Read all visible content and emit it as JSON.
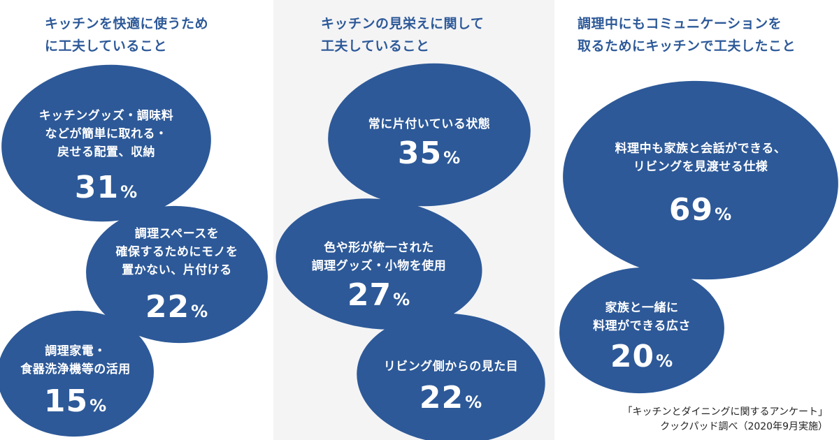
{
  "colors": {
    "bubble": "#2d5998",
    "heading": "#2d5998",
    "mid_panel": "#f4f4f5"
  },
  "columns": [
    {
      "title": "キッチンを快適に使うため\nに工夫していること"
    },
    {
      "title": "キッチンの見栄えに関して\n工夫していること"
    },
    {
      "title": "調理中にもコミュニケーションを\n取るためにキッチンで工夫したこと"
    }
  ],
  "chart_data": {
    "type": "bubble",
    "unit": "%",
    "groups": [
      {
        "title": "キッチンを快適に使うため\nに工夫していること",
        "items": [
          {
            "label": "キッチングッズ・調味料\nなどが簡単に取れる・\n戻せる配置、収納",
            "value": 31
          },
          {
            "label": "調理スペースを\n確保するためにモノを\n置かない、片付ける",
            "value": 22
          },
          {
            "label": "調理家電・\n食器洗浄機等の活用",
            "value": 15
          }
        ]
      },
      {
        "title": "キッチンの見栄えに関して\n工夫していること",
        "items": [
          {
            "label": "常に片付いている状態",
            "value": 35
          },
          {
            "label": "色や形が統一された\n調理グッズ・小物を使用",
            "value": 27
          },
          {
            "label": "リビング側からの見た目",
            "value": 22
          }
        ]
      },
      {
        "title": "調理中にもコミュニケーションを\n取るためにキッチンで工夫したこと",
        "items": [
          {
            "label": "料理中も家族と会話ができる、\nリビングを見渡せる仕様",
            "value": 69
          },
          {
            "label": "家族と一緒に\n料理ができる広さ",
            "value": 20
          }
        ]
      }
    ]
  },
  "source": "「キッチンとダイニングに関するアンケート」\nクックパッド調べ（2020年9月実施）"
}
